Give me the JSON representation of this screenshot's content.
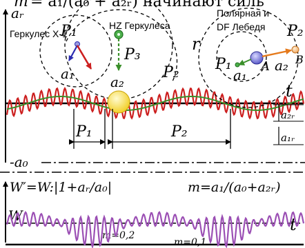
{
  "header": {
    "fragment_left": "m",
    "fragment_formula": "= a₁/(a₀ + a₂ᵣ) начинают силь"
  },
  "top_panel": {
    "axis_y_label": "aᵣ",
    "axis_x_label": "t",
    "neg_a0_label": "-a₀",
    "r_label": "r",
    "left_system": {
      "P1": "P₁",
      "P2": "P₂",
      "P3": "P₃",
      "a1": "a₁",
      "a2": "a₂",
      "hercules_x1": "Геркулес X-1",
      "hz_hercules": "HZ Геркулеса"
    },
    "right_system": {
      "title_line1": "Полярная и",
      "title_line2": "DF Лебедя",
      "P1": "P₁",
      "P2": "P₂",
      "a1": "a₁",
      "a2": "a₂",
      "A": "A",
      "B": "B"
    },
    "bottom_labels": {
      "P1": "P₁",
      "P2": "P₂",
      "a2r": "a₂ᵣ",
      "a1r": "a₁ᵣ"
    }
  },
  "bottom_panel": {
    "formula_w": "W′=W:|1+aᵣ/a₀|",
    "formula_m": "m=a₁/(a₀+a₂ᵣ)",
    "w_label": "W",
    "t_label": "t",
    "m_label_1": "m=0,2",
    "m_label_2": "m=0,1"
  },
  "colors": {
    "red_wave": "#cc1f1f",
    "green_wave": "#3a8f2a",
    "purple_wave": "#9b4fb4",
    "orange_arrow": "#e57a1c",
    "blue_arrow": "#2a2ab0",
    "star_yellow": "#ffe24a",
    "star_green": "#4cb04c",
    "star_blue": "#6a6ad8"
  }
}
